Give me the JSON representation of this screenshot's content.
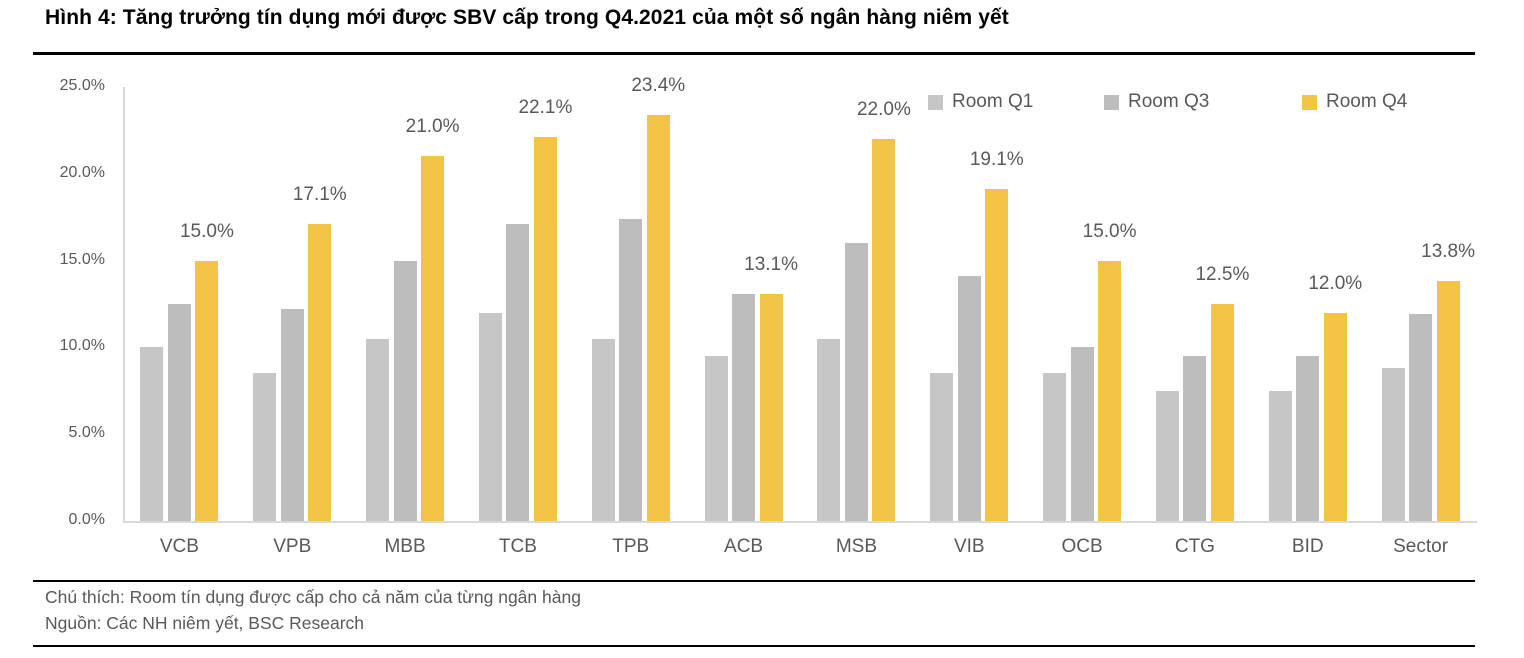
{
  "title": "Hình 4: Tăng trưởng tín dụng mới được SBV cấp trong Q4.2021 của một số ngân hàng niêm yết",
  "footer": {
    "note": "Chú thích: Room tín dụng được cấp cho cả năm của từng ngân hàng",
    "source": "Nguồn: Các NH niêm yết, BSC Research"
  },
  "colors": {
    "room_q1": "#c6c6c6",
    "room_q3": "#bdbdbd",
    "room_q4": "#f2c344",
    "axis_line": "#d9d9d9",
    "label_text": "#595959",
    "title_text": "#000000"
  },
  "chart_data": {
    "type": "bar",
    "title": "",
    "xlabel": "",
    "ylabel": "",
    "categories": [
      "VCB",
      "VPB",
      "MBB",
      "TCB",
      "TPB",
      "ACB",
      "MSB",
      "VIB",
      "OCB",
      "CTG",
      "BID",
      "Sector"
    ],
    "series": [
      {
        "name": "Room Q1",
        "color": "#c6c6c6",
        "values": [
          10.0,
          8.5,
          10.5,
          12.0,
          10.5,
          9.5,
          10.5,
          8.5,
          8.5,
          7.5,
          7.5,
          8.8
        ]
      },
      {
        "name": "Room Q3",
        "color": "#bdbdbd",
        "values": [
          12.5,
          12.2,
          15.0,
          17.1,
          17.4,
          13.1,
          16.0,
          14.1,
          10.0,
          9.5,
          9.5,
          11.9
        ]
      },
      {
        "name": "Room Q4",
        "color": "#f2c344",
        "values": [
          15.0,
          17.1,
          21.0,
          22.1,
          23.4,
          13.1,
          22.0,
          19.1,
          15.0,
          12.5,
          12.0,
          13.8
        ],
        "data_labels": [
          "15.0%",
          "17.1%",
          "21.0%",
          "22.1%",
          "23.4%",
          "13.1%",
          "22.0%",
          "19.1%",
          "15.0%",
          "12.5%",
          "12.0%",
          "13.8%"
        ]
      }
    ],
    "y_ticks": [
      "0.0%",
      "5.0%",
      "10.0%",
      "15.0%",
      "20.0%",
      "25.0%"
    ],
    "ylim": [
      0,
      25
    ],
    "grid": false,
    "legend_position": "top-right"
  }
}
